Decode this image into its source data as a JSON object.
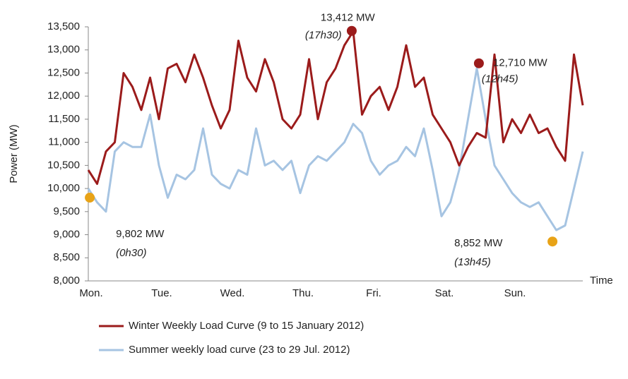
{
  "chart_data": {
    "type": "line",
    "y_label": "Power (MW)",
    "x_label": "Time",
    "x": [
      0,
      3,
      6,
      9,
      12,
      15,
      18,
      21,
      24,
      27,
      30,
      33,
      36,
      39,
      42,
      45,
      48,
      51,
      54,
      57,
      60,
      63,
      66,
      69,
      72,
      75,
      78,
      81,
      84,
      87,
      90,
      93,
      96,
      99,
      102,
      105,
      108,
      111,
      114,
      117,
      120,
      123,
      126,
      129,
      132,
      135,
      138,
      141,
      144,
      147,
      150,
      153,
      156,
      159,
      162,
      165,
      168
    ],
    "xlim": [
      0,
      168
    ],
    "xticks": [
      {
        "value": 0,
        "label": "Mon."
      },
      {
        "value": 24,
        "label": "Tue."
      },
      {
        "value": 48,
        "label": "Wed."
      },
      {
        "value": 72,
        "label": "Thu."
      },
      {
        "value": 96,
        "label": "Fri."
      },
      {
        "value": 120,
        "label": "Sat."
      },
      {
        "value": 144,
        "label": "Sun."
      }
    ],
    "ylim": [
      8000,
      13500
    ],
    "yticks": [
      {
        "value": 8000,
        "label": "8,000"
      },
      {
        "value": 8500,
        "label": "8,500"
      },
      {
        "value": 9000,
        "label": "9,000"
      },
      {
        "value": 9500,
        "label": "9,500"
      },
      {
        "value": 10000,
        "label": "10,000"
      },
      {
        "value": 10500,
        "label": "10,500"
      },
      {
        "value": 11000,
        "label": "11,000"
      },
      {
        "value": 11500,
        "label": "11,500"
      },
      {
        "value": 12000,
        "label": "12,000"
      },
      {
        "value": 12500,
        "label": "12,500"
      },
      {
        "value": 13000,
        "label": "13,000"
      },
      {
        "value": 13500,
        "label": "13,500"
      }
    ],
    "legend": "bottom",
    "series": [
      {
        "name": "Winter Weekly Load Curve (9 to 15 January 2012)",
        "color": "#9b1b1b",
        "values": [
          10400,
          10100,
          10800,
          11000,
          12500,
          12200,
          11700,
          12400,
          11500,
          12600,
          12700,
          12300,
          12900,
          12400,
          11800,
          11300,
          11700,
          13200,
          12400,
          12100,
          12800,
          12300,
          11500,
          11300,
          11600,
          12800,
          11500,
          12300,
          12600,
          13100,
          13400,
          11600,
          12000,
          12200,
          11700,
          12200,
          13100,
          12200,
          12400,
          11600,
          11300,
          11000,
          10500,
          10900,
          11200,
          11100,
          12900,
          11000,
          11500,
          11200,
          11600,
          11200,
          11300,
          10900,
          10600,
          12900,
          11800
        ]
      },
      {
        "name": "Summer weekly load curve (23 to 29 Jul. 2012)",
        "color": "#a6c4e2",
        "values": [
          10000,
          9700,
          9500,
          10800,
          11000,
          10900,
          10900,
          11600,
          10500,
          9800,
          10300,
          10200,
          10400,
          11300,
          10300,
          10100,
          10000,
          10400,
          10300,
          11300,
          10500,
          10600,
          10400,
          10600,
          9900,
          10500,
          10700,
          10600,
          10800,
          11000,
          11400,
          11200,
          10600,
          10300,
          10500,
          10600,
          10900,
          10700,
          11300,
          10400,
          9400,
          9700,
          10400,
          11500,
          12600,
          11500,
          10500,
          10200,
          9900,
          9700,
          9600,
          9700,
          9400,
          9100,
          9200,
          10000,
          10800
        ]
      }
    ],
    "annotations": [
      {
        "label": "13,412 MW",
        "value": 13412,
        "time": "(17h30)",
        "x": 89.5,
        "color": "#9b1b1b"
      },
      {
        "label": "12,710 MW",
        "value": 12710,
        "time": "(12h45)",
        "x": 132.7,
        "color": "#9b1b1b"
      },
      {
        "label": "9,802 MW",
        "value": 9802,
        "time": "(0h30)",
        "x": 0.5,
        "color": "#e8a317"
      },
      {
        "label": "8,852 MW",
        "value": 8852,
        "time": "(13h45)",
        "x": 157.7,
        "color": "#e8a317"
      }
    ]
  }
}
